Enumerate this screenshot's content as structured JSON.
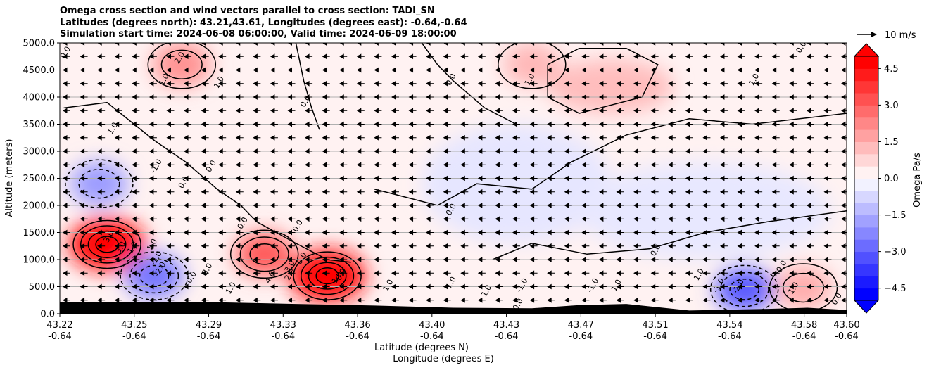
{
  "title_lines": [
    "Omega cross section and wind vectors parallel to cross section: TADI_SN",
    "Latitudes (degrees north): 43.21,43.61, Longitudes (degrees east): -0.64,-0.64",
    "Simulation start time: 2024-06-08 06:00:00, Valid time: 2024-06-09 18:00:00"
  ],
  "chart_data": {
    "type": "heatmap",
    "xlabel_lines": [
      "Latitude (degrees N)",
      "Longitude (degrees E)"
    ],
    "ylabel": "Altitude (meters)",
    "ylim": [
      0,
      5000
    ],
    "y_ticks": [
      "0.0",
      "500.0",
      "1000.0",
      "1500.0",
      "2000.0",
      "2500.0",
      "3000.0",
      "3500.0",
      "4000.0",
      "4500.0",
      "5000.0"
    ],
    "y_tick_values": [
      0,
      500,
      1000,
      1500,
      2000,
      2500,
      3000,
      3500,
      4000,
      4500,
      5000
    ],
    "x_ticks_lat": [
      "43.22",
      "43.25",
      "43.29",
      "43.33",
      "43.36",
      "43.40",
      "43.43",
      "43.47",
      "43.51",
      "43.54",
      "43.58",
      "43.60"
    ],
    "x_ticks_lon": [
      "-0.64",
      "-0.64",
      "-0.64",
      "-0.64",
      "-0.64",
      "-0.64",
      "-0.64",
      "-0.64",
      "-0.64",
      "-0.64",
      "-0.64",
      "-0.64"
    ],
    "x_tick_fractions": [
      0,
      0.0946,
      0.1892,
      0.2838,
      0.3784,
      0.473,
      0.5676,
      0.6622,
      0.7568,
      0.8514,
      0.946,
      1.0
    ],
    "grid": "horizontal",
    "colorbar": {
      "label": "Omega Pa/s",
      "range": [
        -5,
        5
      ],
      "ticks": [
        "4.5",
        "3.0",
        "1.5",
        "0.0",
        "−1.5",
        "−3.0",
        "−4.5"
      ],
      "tick_values": [
        4.5,
        3.0,
        1.5,
        0.0,
        -1.5,
        -3.0,
        -4.5
      ],
      "cmap": "bwr",
      "extend": "both"
    },
    "vector_key": "10 m/s",
    "vector_direction": "westward (towards lower latitude)",
    "terrain_color": "#000000",
    "features": [
      {
        "lat_frac": 0.155,
        "alt": 4600,
        "value": 2.0
      },
      {
        "lat_frac": 0.06,
        "alt": 1280,
        "value": 4.5
      },
      {
        "lat_frac": 0.26,
        "alt": 1100,
        "value": 3.0
      },
      {
        "lat_frac": 0.34,
        "alt": 700,
        "value": 4.5
      },
      {
        "lat_frac": 0.12,
        "alt": 700,
        "value": -2.5
      },
      {
        "lat_frac": 0.05,
        "alt": 2400,
        "value": -1.8
      },
      {
        "lat_frac": 0.87,
        "alt": 450,
        "value": -3.0
      },
      {
        "lat_frac": 0.6,
        "alt": 4600,
        "value": 1.3
      },
      {
        "lat_frac": 0.945,
        "alt": 480,
        "value": 1.5
      }
    ],
    "contour_labels": [
      {
        "text": "0.0",
        "lat_frac": 0.01,
        "alt": 4800
      },
      {
        "text": "2.0",
        "lat_frac": 0.155,
        "alt": 4700
      },
      {
        "text": "1.0",
        "lat_frac": 0.135,
        "alt": 4300
      },
      {
        "text": "1.0",
        "lat_frac": 0.205,
        "alt": 4250
      },
      {
        "text": "0.0",
        "lat_frac": 0.5,
        "alt": 4300
      },
      {
        "text": "1.0",
        "lat_frac": 0.6,
        "alt": 4300
      },
      {
        "text": "1.0",
        "lat_frac": 0.885,
        "alt": 4300
      },
      {
        "text": "0.0",
        "lat_frac": 0.945,
        "alt": 4900
      },
      {
        "text": "0.0",
        "lat_frac": 0.315,
        "alt": 3900
      },
      {
        "text": "1.0",
        "lat_frac": 0.07,
        "alt": 3400
      },
      {
        "text": "-1.0",
        "lat_frac": 0.125,
        "alt": 2700
      },
      {
        "text": "0.0",
        "lat_frac": 0.195,
        "alt": 2700
      },
      {
        "text": "0.0",
        "lat_frac": 0.16,
        "alt": 2400
      },
      {
        "text": "0.0",
        "lat_frac": 0.5,
        "alt": 1900
      },
      {
        "text": "0.0",
        "lat_frac": 0.235,
        "alt": 1650
      },
      {
        "text": "0.0",
        "lat_frac": 0.305,
        "alt": 1600
      },
      {
        "text": "3.0",
        "lat_frac": 0.065,
        "alt": 1400
      },
      {
        "text": "3.0",
        "lat_frac": 0.08,
        "alt": 1200
      },
      {
        "text": "1.0",
        "lat_frac": 0.095,
        "alt": 1200
      },
      {
        "text": "1.0",
        "lat_frac": 0.12,
        "alt": 1250
      },
      {
        "text": "-1.0",
        "lat_frac": 0.125,
        "alt": 1000
      },
      {
        "text": "3.0",
        "lat_frac": 0.19,
        "alt": 800
      },
      {
        "text": "-2.0",
        "lat_frac": 0.13,
        "alt": 800
      },
      {
        "text": "0.0",
        "lat_frac": 0.17,
        "alt": 650
      },
      {
        "text": "3.0",
        "lat_frac": 0.295,
        "alt": 850
      },
      {
        "text": "2.0",
        "lat_frac": 0.295,
        "alt": 700
      },
      {
        "text": "4.0",
        "lat_frac": 0.27,
        "alt": 650
      },
      {
        "text": "1.0",
        "lat_frac": 0.22,
        "alt": 450
      },
      {
        "text": "0.0",
        "lat_frac": 0.31,
        "alt": 1000
      },
      {
        "text": "0.0",
        "lat_frac": 0.36,
        "alt": 700
      },
      {
        "text": "1.0",
        "lat_frac": 0.355,
        "alt": 650
      },
      {
        "text": "1.0",
        "lat_frac": 0.42,
        "alt": 500
      },
      {
        "text": "1.0",
        "lat_frac": 0.5,
        "alt": 550
      },
      {
        "text": "1.0",
        "lat_frac": 0.545,
        "alt": 400
      },
      {
        "text": "-1.0",
        "lat_frac": 0.59,
        "alt": 500
      },
      {
        "text": "0.0",
        "lat_frac": 0.585,
        "alt": 150
      },
      {
        "text": "-1.0",
        "lat_frac": 0.68,
        "alt": 500
      },
      {
        "text": "1.0",
        "lat_frac": 0.71,
        "alt": 500
      },
      {
        "text": "0.0",
        "lat_frac": 0.76,
        "alt": 1150
      },
      {
        "text": "1.0",
        "lat_frac": 0.815,
        "alt": 700
      },
      {
        "text": "0.0",
        "lat_frac": 0.92,
        "alt": 850
      },
      {
        "text": "-1.0",
        "lat_frac": 0.84,
        "alt": 500
      },
      {
        "text": "-2.0",
        "lat_frac": 0.865,
        "alt": 480
      },
      {
        "text": "1.0",
        "lat_frac": 0.935,
        "alt": 450
      },
      {
        "text": "0.0",
        "lat_frac": 0.99,
        "alt": 250
      }
    ]
  },
  "colors": {
    "positive": "#ff0000",
    "negative": "#0000ff",
    "neutral": "#ffffff",
    "terrain": "#000000",
    "grid": "#b0b0b0"
  }
}
